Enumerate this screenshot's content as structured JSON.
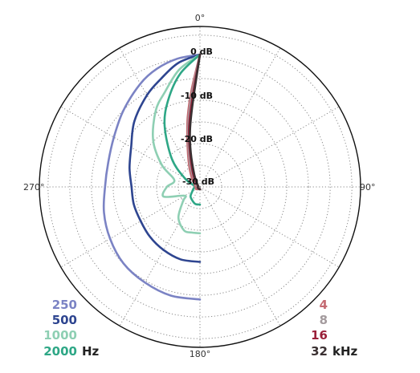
{
  "chart_data": {
    "type": "polar-line",
    "angle_labels": {
      "top": "0°",
      "right": "90°",
      "bottom": "180°",
      "left": "270°"
    },
    "ring_labels": [
      "0 dB",
      "-10 dB",
      "-20 dB",
      "-30 dB"
    ],
    "r_range_db": [
      -30,
      0
    ],
    "grid": true,
    "angular_grid_step_deg": 30,
    "legend_left": {
      "unit": "Hz",
      "entries": [
        "250",
        "500",
        "1000",
        "2000"
      ]
    },
    "legend_right": {
      "unit": "kHz",
      "entries": [
        "4",
        "8",
        "16",
        "32"
      ]
    },
    "series": [
      {
        "name": "250",
        "color": "#7b83c4",
        "theta_deg": [
          0,
          10,
          20,
          30,
          45,
          60,
          75,
          90,
          105,
          120,
          135,
          150,
          165,
          180
        ],
        "db": [
          0,
          -0.5,
          -1.5,
          -3,
          -5.5,
          -7.5,
          -8.5,
          -8.5,
          -7.5,
          -6.5,
          -5.5,
          -5,
          -4.5,
          -4.5
        ]
      },
      {
        "name": "500",
        "color": "#2e4590",
        "theta_deg": [
          0,
          10,
          20,
          30,
          45,
          60,
          75,
          90,
          105,
          120,
          135,
          150,
          165,
          180
        ],
        "db": [
          0,
          -1.5,
          -4,
          -6,
          -9,
          -12,
          -13.5,
          -14.5,
          -14.5,
          -14.5,
          -14,
          -13.5,
          -13,
          -13
        ]
      },
      {
        "name": "1000",
        "color": "#8ecfb3",
        "theta_deg": [
          0,
          10,
          20,
          30,
          45,
          60,
          75,
          90,
          105,
          120,
          130,
          145,
          160,
          170,
          180
        ],
        "db": [
          0,
          -3,
          -7,
          -10,
          -15,
          -20,
          -24,
          -22.5,
          -21.5,
          -26,
          -25,
          -21.5,
          -19.5,
          -19.5,
          -19.5
        ]
      },
      {
        "name": "2000",
        "color": "#2ea786",
        "theta_deg": [
          0,
          10,
          20,
          30,
          45,
          60,
          75,
          90,
          105,
          120,
          135,
          150,
          165,
          180
        ],
        "db": [
          0,
          -4,
          -9,
          -14,
          -21,
          -26,
          -28.5,
          -29,
          -28.5,
          -28,
          -27,
          -26.5,
          -26,
          -26
        ]
      },
      {
        "name": "4",
        "color": "#c46a72",
        "theta_deg": [
          0,
          5,
          10,
          15,
          25,
          40,
          60,
          90,
          120,
          150,
          180
        ],
        "db": [
          0,
          -8,
          -14,
          -19,
          -24,
          -27,
          -28.5,
          -29,
          -29,
          -29.5,
          -29.5
        ]
      },
      {
        "name": "8",
        "color": "#a39a9d",
        "theta_deg": [
          0,
          5,
          10,
          15,
          25,
          40,
          60,
          90,
          120,
          150,
          180
        ],
        "db": [
          0,
          -9,
          -15,
          -20,
          -25,
          -28,
          -29,
          -29.5,
          -29.5,
          -29.5,
          -29.5
        ]
      },
      {
        "name": "16",
        "color": "#9a2039",
        "theta_deg": [
          0,
          5,
          10,
          15,
          25,
          40,
          60,
          90,
          120,
          150,
          180
        ],
        "db": [
          0,
          -10,
          -16,
          -21,
          -26,
          -28.5,
          -29.5,
          -29.5,
          -29.5,
          -29.5,
          -29.5
        ]
      },
      {
        "name": "32",
        "color": "#3a3032",
        "theta_deg": [
          0,
          5,
          10,
          15,
          25,
          40,
          60,
          90,
          120,
          150,
          180
        ],
        "db": [
          0,
          -11,
          -17,
          -22,
          -27,
          -29,
          -29.5,
          -29.5,
          -29.5,
          -29.5,
          -29.5
        ]
      }
    ]
  }
}
